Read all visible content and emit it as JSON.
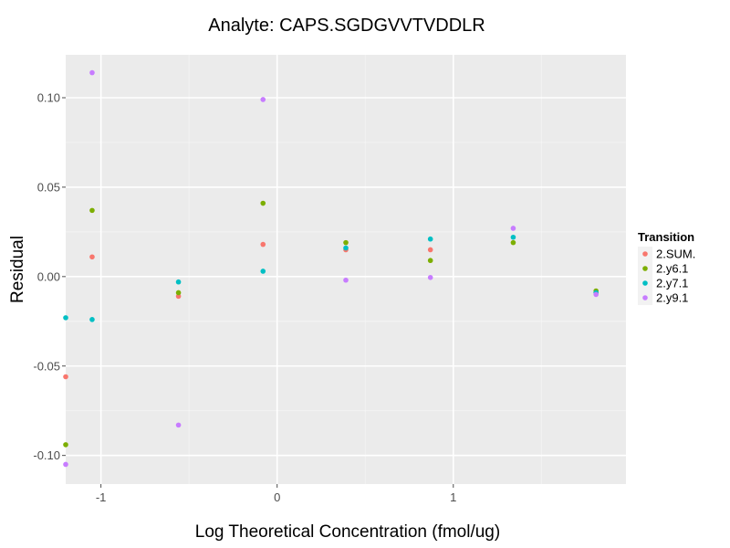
{
  "chart_data": {
    "type": "scatter",
    "title": "Analyte: CAPS.SGDGVVTVDDLR",
    "xlabel": "Log Theoretical Concentration (fmol/ug)",
    "ylabel": "Residual",
    "xlim": [
      -1.2,
      1.98
    ],
    "ylim": [
      -0.116,
      0.124
    ],
    "x_ticks": [
      -1,
      0,
      1
    ],
    "x_tick_labels": [
      "-1",
      "0",
      "1"
    ],
    "y_ticks": [
      -0.1,
      -0.05,
      0.0,
      0.05,
      0.1
    ],
    "y_tick_labels": [
      "-0.10",
      "-0.05",
      "0.00",
      "0.05",
      "0.10"
    ],
    "grid": true,
    "legend": {
      "title": "Transition",
      "position": "right"
    },
    "series": [
      {
        "name": "2.SUM.",
        "color": "#F8766D",
        "points": [
          [
            -1.2,
            -0.056
          ],
          [
            -1.05,
            0.011
          ],
          [
            -0.56,
            -0.011
          ],
          [
            -0.08,
            0.018
          ],
          [
            0.39,
            0.015
          ],
          [
            0.87,
            0.015
          ],
          [
            1.81,
            -0.009
          ]
        ]
      },
      {
        "name": "2.y6.1",
        "color": "#7CAE00",
        "points": [
          [
            -1.2,
            -0.094
          ],
          [
            -1.05,
            0.037
          ],
          [
            -0.56,
            -0.009
          ],
          [
            -0.08,
            0.041
          ],
          [
            0.39,
            0.019
          ],
          [
            0.87,
            0.009
          ],
          [
            1.34,
            0.019
          ],
          [
            1.81,
            -0.008
          ]
        ]
      },
      {
        "name": "2.y7.1",
        "color": "#00BFC4",
        "points": [
          [
            -1.2,
            -0.023
          ],
          [
            -1.05,
            -0.024
          ],
          [
            -0.56,
            -0.003
          ],
          [
            -0.08,
            0.003
          ],
          [
            0.39,
            0.016
          ],
          [
            0.87,
            0.021
          ],
          [
            1.34,
            0.022
          ],
          [
            1.81,
            -0.009
          ]
        ]
      },
      {
        "name": "2.y9.1",
        "color": "#C77CFF",
        "points": [
          [
            -1.2,
            -0.105
          ],
          [
            -1.05,
            0.114
          ],
          [
            -0.56,
            -0.083
          ],
          [
            -0.08,
            0.099
          ],
          [
            0.39,
            -0.002
          ],
          [
            0.87,
            -0.0005
          ],
          [
            1.34,
            0.027
          ],
          [
            1.81,
            -0.01
          ]
        ]
      }
    ]
  }
}
